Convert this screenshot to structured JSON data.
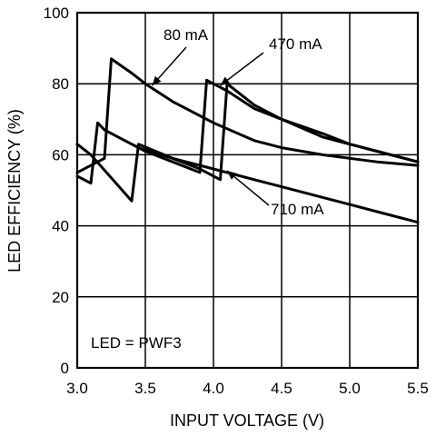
{
  "chart_data": {
    "type": "line",
    "xlabel": "INPUT VOLTAGE (V)",
    "ylabel": "LED EFFICIENCY (%)",
    "xlim": [
      3.0,
      5.5
    ],
    "ylim": [
      0,
      100
    ],
    "x_ticks": [
      3.0,
      3.5,
      4.0,
      4.5,
      5.0,
      5.5
    ],
    "x_tick_labels": [
      "3.0",
      "3.5",
      "4.0",
      "4.5",
      "5.0",
      "5.5"
    ],
    "y_ticks": [
      0,
      20,
      40,
      60,
      80,
      100
    ],
    "y_tick_labels": [
      "0",
      "20",
      "40",
      "60",
      "80",
      "100"
    ],
    "grid": true,
    "note": "LED = PWF3",
    "series": [
      {
        "name": "80 mA",
        "color": "#000000",
        "x": [
          3.0,
          3.2,
          3.25,
          3.4,
          3.5,
          3.7,
          4.0,
          4.3,
          4.5,
          4.8,
          5.0,
          5.2,
          5.5
        ],
        "y": [
          55,
          59,
          87,
          83,
          80,
          75,
          69,
          64,
          62,
          60,
          59,
          58,
          57
        ]
      },
      {
        "name": "470 mA",
        "color": "#000000",
        "x": [
          3.0,
          3.1,
          3.15,
          3.2,
          3.35,
          3.5,
          3.7,
          3.9,
          3.95,
          4.1,
          4.3,
          4.5,
          4.8,
          5.0,
          5.2,
          5.5
        ],
        "y": [
          54,
          52,
          69,
          67,
          64,
          61,
          58,
          55,
          81,
          78,
          73,
          70,
          65,
          63,
          61,
          58
        ]
      },
      {
        "name": "710 mA",
        "color": "#000000",
        "x": [
          3.0,
          3.1,
          3.4,
          3.45,
          3.7,
          3.9,
          4.05,
          4.1,
          4.3,
          4.5,
          4.8,
          5.0,
          5.2,
          5.5
        ],
        "y": [
          63,
          60,
          47,
          63,
          59,
          56,
          53,
          80,
          74,
          70,
          66,
          63,
          61,
          58
        ]
      },
      {
        "name": "",
        "color": "#000000",
        "x": [
          3.45,
          3.7,
          4.0,
          4.3,
          4.5,
          4.8,
          5.0,
          5.2,
          5.5
        ],
        "y": [
          62,
          59,
          56,
          53,
          51,
          48,
          46,
          44,
          41
        ]
      }
    ],
    "annotations": [
      {
        "text": "80 mA",
        "target_x": 3.55,
        "target_y": 79.5
      },
      {
        "text": "470 mA",
        "target_x": 4.05,
        "target_y": 79.5
      },
      {
        "text": "710 mA",
        "target_x": 4.1,
        "target_y": 55.5
      }
    ]
  }
}
